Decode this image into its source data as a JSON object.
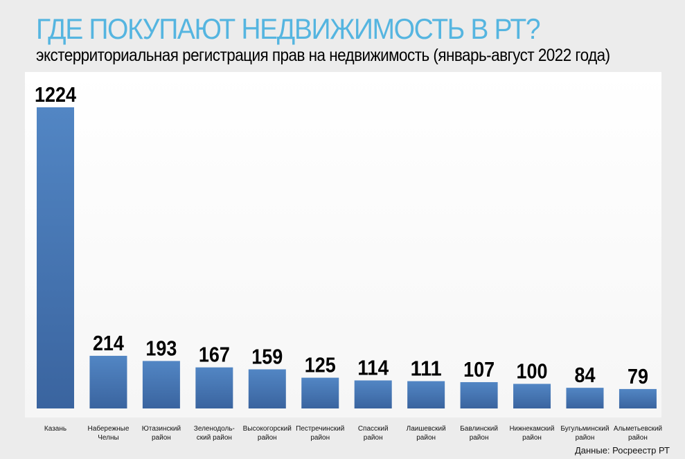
{
  "chart_data": {
    "type": "bar",
    "title": "ГДЕ ПОКУПАЮТ НЕДВИЖИМОСТЬ В РТ?",
    "subtitle": "экстерриториальная регистрация прав на недвижимость (январь-август 2022 года)",
    "categories": [
      [
        "Казань"
      ],
      [
        "Набережные",
        "Челны"
      ],
      [
        "Ютазинский",
        "район"
      ],
      [
        "Зеленодоль-",
        "ский район"
      ],
      [
        "Высокогорский",
        "район"
      ],
      [
        "Пестречинский",
        "район"
      ],
      [
        "Спасский",
        "район"
      ],
      [
        "Лаишевский",
        "район"
      ],
      [
        "Бавлинский",
        "район"
      ],
      [
        "Нижнекамский",
        "район"
      ],
      [
        "Бугульминский",
        "район"
      ],
      [
        "Альметьевский",
        "район"
      ]
    ],
    "values": [
      1224,
      214,
      193,
      167,
      159,
      125,
      114,
      111,
      107,
      100,
      84,
      79
    ],
    "xlabel": "",
    "ylabel": "",
    "ylim": [
      0,
      1224
    ],
    "grid": false,
    "bar_color": "#4a7ab8",
    "source": "Данные: Росреестр РТ"
  }
}
